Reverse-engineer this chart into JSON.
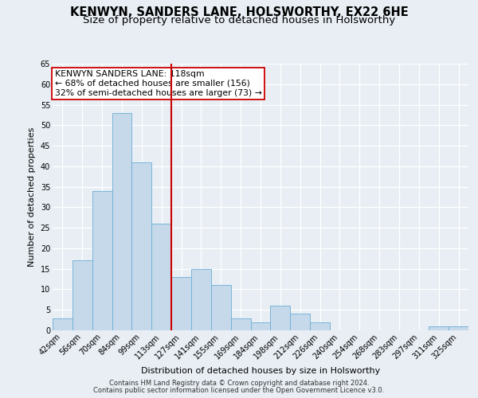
{
  "title": "KENWYN, SANDERS LANE, HOLSWORTHY, EX22 6HE",
  "subtitle": "Size of property relative to detached houses in Holsworthy",
  "xlabel": "Distribution of detached houses by size in Holsworthy",
  "ylabel": "Number of detached properties",
  "categories": [
    "42sqm",
    "56sqm",
    "70sqm",
    "84sqm",
    "99sqm",
    "113sqm",
    "127sqm",
    "141sqm",
    "155sqm",
    "169sqm",
    "184sqm",
    "198sqm",
    "212sqm",
    "226sqm",
    "240sqm",
    "254sqm",
    "268sqm",
    "283sqm",
    "297sqm",
    "311sqm",
    "325sqm"
  ],
  "values": [
    3,
    17,
    34,
    53,
    41,
    26,
    13,
    15,
    11,
    3,
    2,
    6,
    4,
    2,
    0,
    0,
    0,
    0,
    0,
    1,
    1
  ],
  "bar_color": "#c6d9ea",
  "bar_edge_color": "#6aaed6",
  "vline_x_index": 5.5,
  "vline_color": "#cc0000",
  "annotation_line1": "KENWYN SANDERS LANE: 118sqm",
  "annotation_line2": "← 68% of detached houses are smaller (156)",
  "annotation_line3": "32% of semi-detached houses are larger (73) →",
  "annotation_box_color": "#ffffff",
  "annotation_box_edge": "#cc0000",
  "ylim": [
    0,
    65
  ],
  "yticks": [
    0,
    5,
    10,
    15,
    20,
    25,
    30,
    35,
    40,
    45,
    50,
    55,
    60,
    65
  ],
  "footer1": "Contains HM Land Registry data © Crown copyright and database right 2024.",
  "footer2": "Contains public sector information licensed under the Open Government Licence v3.0.",
  "bg_color": "#e8eef4",
  "plot_bg_color": "#e8eef4",
  "title_fontsize": 10.5,
  "subtitle_fontsize": 9.5,
  "axis_label_fontsize": 8,
  "tick_fontsize": 7,
  "footer_fontsize": 6,
  "annotation_fontsize": 7.8
}
